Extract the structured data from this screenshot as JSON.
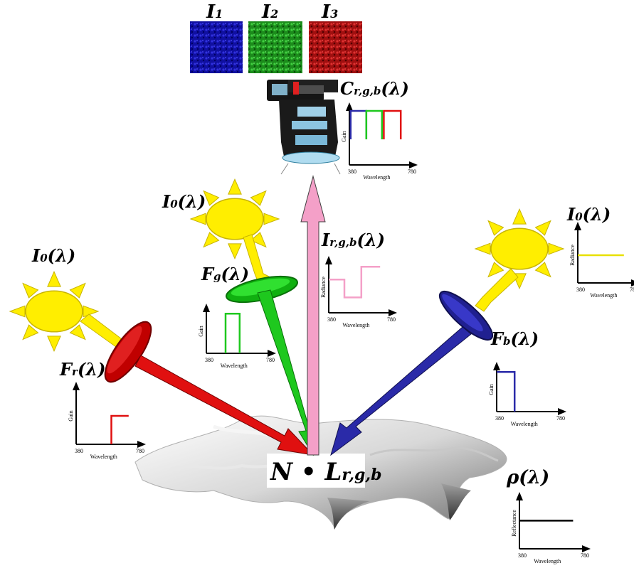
{
  "colors": {
    "red": "#e01010",
    "green": "#1ec81e",
    "blue": "#2a2aa8",
    "pink": "#f4a0c8",
    "sun": "#ffee00",
    "sun_outline": "#c8b400",
    "sensor_yellow": "#e8e000",
    "reflectance": "#000000"
  },
  "images": {
    "i1": {
      "main": "I",
      "sub": "1"
    },
    "i2": {
      "main": "I",
      "sub": "2"
    },
    "i3": {
      "main": "I",
      "sub": "3"
    }
  },
  "labels": {
    "camera": {
      "main": "C",
      "sub": "r,g,b",
      "tail": "(λ)"
    },
    "source_left": {
      "main": "I",
      "sub": "0",
      "tail": "(λ)"
    },
    "source_mid": {
      "main": "I",
      "sub": "0",
      "tail": "(λ)"
    },
    "source_right": {
      "main": "I",
      "sub": "0",
      "tail": "(λ)"
    },
    "filter_red": {
      "main": "F",
      "sub": "r",
      "tail": "(λ)"
    },
    "filter_green": {
      "main": "F",
      "sub": "g",
      "tail": "(λ)"
    },
    "filter_blue": {
      "main": "F",
      "sub": "b",
      "tail": "(λ)"
    },
    "radiance": {
      "main": "I",
      "sub": "r,g,b",
      "tail": "(λ)"
    },
    "reflectance": {
      "main": "ρ",
      "tail": "(λ)"
    },
    "surface": {
      "main": "N • L",
      "sub": "r,g,b"
    }
  },
  "chart_data": [
    {
      "id": "camera_gain",
      "type": "line",
      "ylabel": "Gain",
      "xlabel": "Wavelength",
      "x_ticks": [
        "380",
        "780"
      ],
      "series": [
        {
          "color": "blue",
          "band": [
            380,
            480
          ]
        },
        {
          "color": "green",
          "band": [
            480,
            580
          ]
        },
        {
          "color": "red",
          "band": [
            580,
            680
          ]
        }
      ]
    },
    {
      "id": "green_filter_gain",
      "type": "line",
      "ylabel": "Gain",
      "xlabel": "Wavelength",
      "x_ticks": [
        "380",
        "780"
      ],
      "series": [
        {
          "color": "green",
          "band": [
            500,
            560
          ]
        }
      ]
    },
    {
      "id": "red_filter_gain",
      "type": "line",
      "ylabel": "Gain",
      "xlabel": "Wavelength",
      "x_ticks": [
        "380",
        "780"
      ],
      "series": [
        {
          "color": "red",
          "band": [
            620,
            780
          ]
        }
      ]
    },
    {
      "id": "blue_filter_gain",
      "type": "line",
      "ylabel": "Gain",
      "xlabel": "Wavelength",
      "x_ticks": [
        "380",
        "780"
      ],
      "series": [
        {
          "color": "blue",
          "band": [
            380,
            480
          ]
        }
      ]
    },
    {
      "id": "radiance",
      "type": "line",
      "ylabel": "Radiance",
      "xlabel": "Wavelength",
      "x_ticks": [
        "380",
        "780"
      ],
      "series": [
        {
          "color": "pink",
          "shape": "notch"
        }
      ]
    },
    {
      "id": "illuminant",
      "type": "line",
      "ylabel": "Radiance",
      "xlabel": "Wavelength",
      "x_ticks": [
        "380",
        "780"
      ],
      "series": [
        {
          "color": "sensor_yellow",
          "shape": "flat"
        }
      ]
    },
    {
      "id": "reflectance",
      "type": "line",
      "ylabel": "Reflectance",
      "xlabel": "Wavelength",
      "x_ticks": [
        "380",
        "780"
      ],
      "series": [
        {
          "color": "reflectance",
          "shape": "flat"
        }
      ]
    }
  ]
}
